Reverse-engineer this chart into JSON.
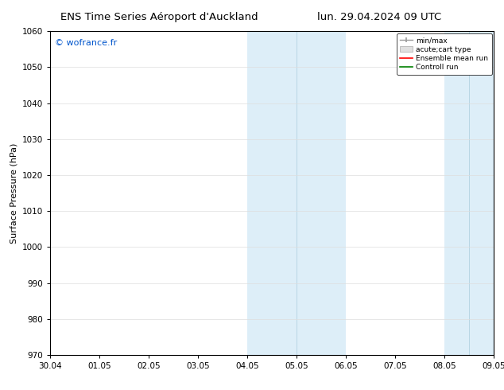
{
  "title_left": "ENS Time Series Aéroport d'Auckland",
  "title_right": "lun. 29.04.2024 09 UTC",
  "ylabel": "Surface Pressure (hPa)",
  "ylim": [
    970,
    1060
  ],
  "yticks": [
    970,
    980,
    990,
    1000,
    1010,
    1020,
    1030,
    1040,
    1050,
    1060
  ],
  "xtick_labels": [
    "30.04",
    "01.05",
    "02.05",
    "03.05",
    "04.05",
    "05.05",
    "06.05",
    "07.05",
    "08.05",
    "09.05"
  ],
  "watermark": "© wofrance.fr",
  "watermark_color": "#0055cc",
  "shaded_bands": [
    {
      "xstart": 4.0,
      "xend": 5.0,
      "color": "#ddeef8"
    },
    {
      "xstart": 5.0,
      "xend": 6.0,
      "color": "#ddeef8"
    },
    {
      "xstart": 8.0,
      "xend": 8.5,
      "color": "#ddeef8"
    },
    {
      "xstart": 8.5,
      "xend": 9.0,
      "color": "#ddeef8"
    }
  ],
  "band_dividers": [
    5.0,
    8.5
  ],
  "band_divider_color": "#aaccdd",
  "legend_items": [
    {
      "label": "min/max",
      "color": "#999999",
      "type": "errorbar"
    },
    {
      "label": "acute;cart type",
      "color": "#cccccc",
      "type": "bar"
    },
    {
      "label": "Ensemble mean run",
      "color": "#ff0000",
      "type": "line"
    },
    {
      "label": "Controll run",
      "color": "#008000",
      "type": "line"
    }
  ],
  "background_color": "#ffffff",
  "grid_color": "#dddddd",
  "title_fontsize": 9.5,
  "tick_fontsize": 7.5,
  "ylabel_fontsize": 8
}
